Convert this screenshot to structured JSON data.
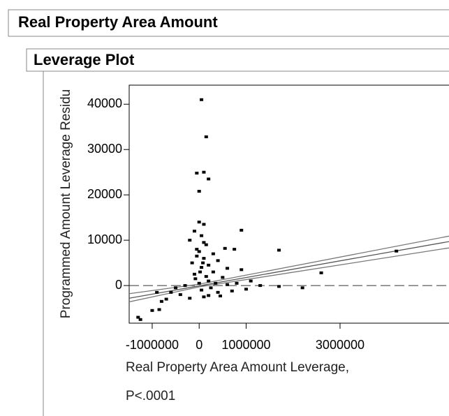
{
  "header": {
    "title": "Real Property Area Amount",
    "subtitle": "Leverage Plot"
  },
  "chart_data": {
    "type": "scatter",
    "ylabel": "Programmed Amount Leverage Residu",
    "xlabel": [
      "Real Property Area Amount Leverage,",
      "P<.0001"
    ],
    "xlim": [
      -1490000,
      5320000
    ],
    "ylim": [
      -8300,
      44200
    ],
    "xticks": [
      -1000000,
      0,
      1000000,
      3000000
    ],
    "yticks": [
      0,
      10000,
      20000,
      30000,
      40000
    ],
    "color": "#000000",
    "x": [
      50000,
      150000,
      100000,
      -50000,
      200000,
      0,
      0,
      100000,
      900000,
      -100000,
      50000,
      -200000,
      150000,
      550000,
      750000,
      1700000,
      4200000,
      300000,
      -50000,
      100000,
      400000,
      -150000,
      200000,
      50000,
      600000,
      900000,
      2600000,
      300000,
      -100000,
      150000,
      500000,
      1100000,
      800000,
      1300000,
      1700000,
      2200000,
      200000,
      0,
      -300000,
      -500000,
      -600000,
      -900000,
      -400000,
      400000,
      700000,
      100000,
      -200000,
      -700000,
      -800000,
      -1000000,
      -850000,
      -1300000,
      -1250000,
      50000,
      250000,
      350000,
      -50000,
      100000,
      0,
      20000,
      80000,
      -80000,
      200000,
      450000,
      1000000,
      600000
    ],
    "values": [
      41000,
      32800,
      25000,
      24800,
      23500,
      20800,
      14000,
      13500,
      12200,
      12000,
      11000,
      10000,
      9000,
      8200,
      8000,
      7800,
      7600,
      7000,
      6500,
      6000,
      5500,
      5000,
      4500,
      4000,
      3800,
      3500,
      2800,
      3000,
      2500,
      2000,
      1800,
      1000,
      500,
      0,
      -200,
      -500,
      1000,
      500,
      0,
      -500,
      -1500,
      -1500,
      -2000,
      -1500,
      -1200,
      -2500,
      -2800,
      -3000,
      -3500,
      -5500,
      -5300,
      -7000,
      -7500,
      -1000,
      -500,
      500,
      8000,
      9500,
      7500,
      3000,
      5000,
      1500,
      -2200,
      -2300,
      -800,
      200
    ],
    "reference_line": 0,
    "lines": [
      {
        "x": [
          -1490000,
          5320000
        ],
        "values": [
          -2800,
          9700
        ],
        "color": "#555555"
      },
      {
        "x": [
          -1490000,
          0,
          5320000
        ],
        "values": [
          -1800,
          300,
          10900
        ],
        "color": "#777777"
      },
      {
        "x": [
          -1490000,
          0,
          5320000
        ],
        "values": [
          -3600,
          -300,
          8300
        ],
        "color": "#777777"
      }
    ]
  }
}
